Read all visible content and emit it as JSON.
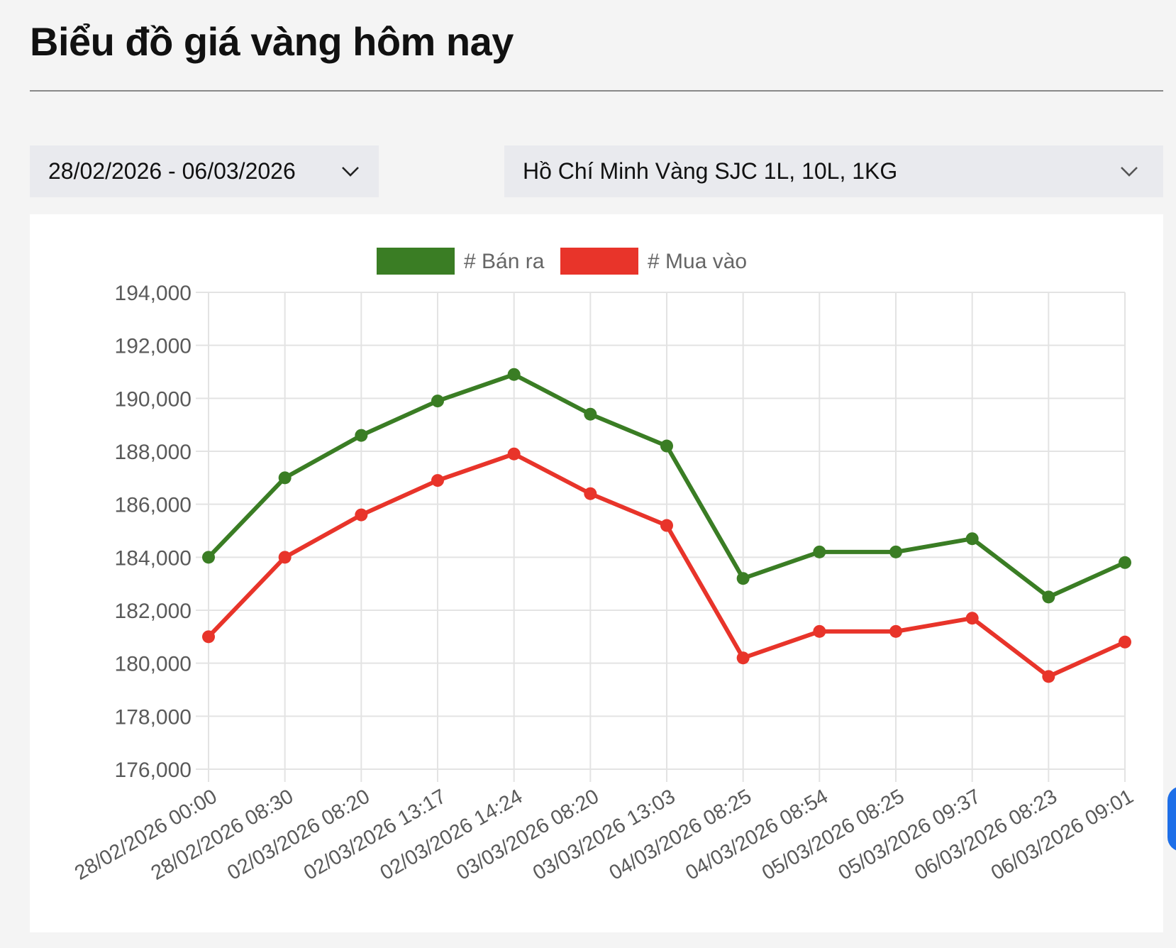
{
  "header": {
    "title": "Biểu đồ giá vàng hôm nay"
  },
  "filters": {
    "date_range": "28/02/2026 - 06/03/2026",
    "region_product": "Hồ Chí Minh Vàng SJC 1L, 10L, 1KG"
  },
  "icons": {
    "date_dropdown": "chevron-down-icon",
    "region_dropdown": "chevron-down-icon"
  },
  "colors": {
    "sell": "#3a7d24",
    "buy": "#e8342a",
    "grid": "#e3e3e3",
    "tick_text": "#5a5a5a"
  },
  "chart_data": {
    "type": "line",
    "title": "",
    "xlabel": "",
    "ylabel": "",
    "legend_position": "top-center",
    "grid": true,
    "ylim": [
      176000,
      194000
    ],
    "y_ticks": [
      "176,000",
      "178,000",
      "180,000",
      "182,000",
      "184,000",
      "186,000",
      "188,000",
      "190,000",
      "192,000",
      "194,000"
    ],
    "categories": [
      "28/02/2026 00:00",
      "28/02/2026 08:30",
      "02/03/2026 08:20",
      "02/03/2026 13:17",
      "02/03/2026 14:24",
      "03/03/2026 08:20",
      "03/03/2026 13:03",
      "04/03/2026 08:25",
      "04/03/2026 08:54",
      "05/03/2026 08:25",
      "05/03/2026 09:37",
      "06/03/2026 08:23",
      "06/03/2026 09:01"
    ],
    "series": [
      {
        "name": "# Bán ra",
        "color": "#3a7d24",
        "values": [
          184000,
          187000,
          188600,
          189900,
          190900,
          189400,
          188200,
          183200,
          184200,
          184200,
          184700,
          182500,
          183800
        ]
      },
      {
        "name": "# Mua vào",
        "color": "#e8342a",
        "values": [
          181000,
          184000,
          185600,
          186900,
          187900,
          186400,
          185200,
          180200,
          181200,
          181200,
          181700,
          179500,
          180800
        ]
      }
    ]
  }
}
